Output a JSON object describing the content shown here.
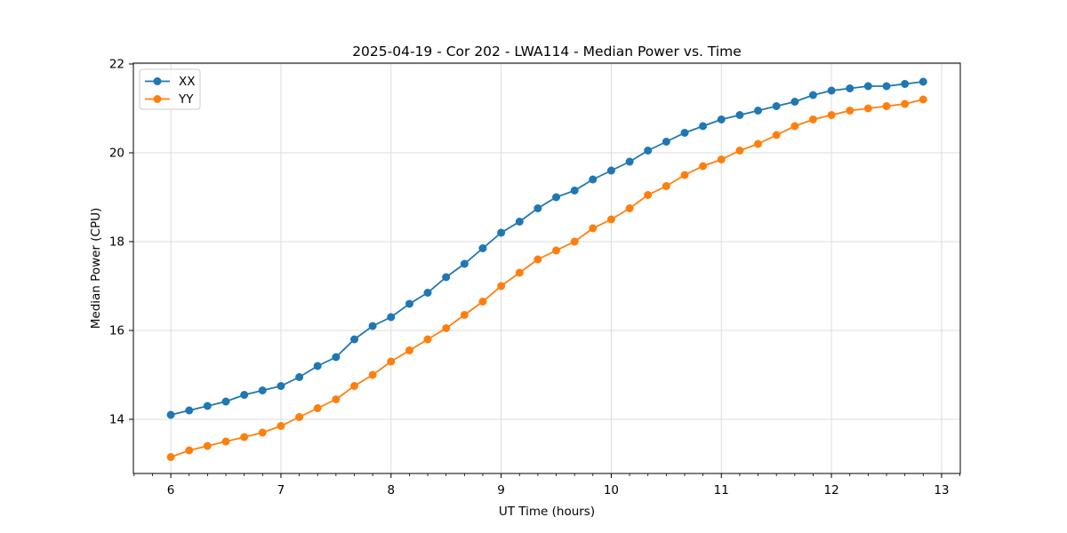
{
  "chart_data": {
    "type": "line",
    "title": "2025-04-19 - Cor 202 - LWA114 - Median Power vs. Time",
    "xlabel": "UT Time (hours)",
    "ylabel": "Median Power (CPU)",
    "xlim": [
      5.66,
      13.17
    ],
    "ylim": [
      12.78,
      22.02
    ],
    "x_major_ticks": [
      6,
      7,
      8,
      9,
      10,
      11,
      12,
      13
    ],
    "x_minor_step": 0.1666667,
    "y_major_ticks": [
      14,
      16,
      18,
      20,
      22
    ],
    "grid": true,
    "legend_position": "upper left",
    "colors": {
      "grid": "#dcdcdc",
      "spine": "#000000",
      "series_xx": "#1f77b4",
      "series_yy": "#ff7f0e"
    },
    "x": [
      6.0,
      6.167,
      6.333,
      6.5,
      6.667,
      6.833,
      7.0,
      7.167,
      7.333,
      7.5,
      7.667,
      7.833,
      8.0,
      8.167,
      8.333,
      8.5,
      8.667,
      8.833,
      9.0,
      9.167,
      9.333,
      9.5,
      9.667,
      9.833,
      10.0,
      10.167,
      10.333,
      10.5,
      10.667,
      10.833,
      11.0,
      11.167,
      11.333,
      11.5,
      11.667,
      11.833,
      12.0,
      12.167,
      12.333,
      12.5,
      12.667,
      12.833
    ],
    "series": [
      {
        "name": "XX",
        "color": "#1f77b4",
        "values": [
          14.1,
          14.2,
          14.3,
          14.4,
          14.55,
          14.65,
          14.75,
          14.95,
          15.2,
          15.4,
          15.8,
          16.1,
          16.3,
          16.6,
          16.85,
          17.2,
          17.5,
          17.85,
          18.2,
          18.45,
          18.75,
          19.0,
          19.15,
          19.4,
          19.6,
          19.8,
          20.05,
          20.25,
          20.45,
          20.6,
          20.75,
          20.85,
          20.95,
          21.05,
          21.15,
          21.3,
          21.4,
          21.45,
          21.5,
          21.5,
          21.55,
          21.6
        ]
      },
      {
        "name": "YY",
        "color": "#ff7f0e",
        "values": [
          13.15,
          13.3,
          13.4,
          13.5,
          13.6,
          13.7,
          13.85,
          14.05,
          14.25,
          14.45,
          14.75,
          15.0,
          15.3,
          15.55,
          15.8,
          16.05,
          16.35,
          16.65,
          17.0,
          17.3,
          17.6,
          17.8,
          18.0,
          18.3,
          18.5,
          18.75,
          19.05,
          19.25,
          19.5,
          19.7,
          19.85,
          20.05,
          20.2,
          20.4,
          20.6,
          20.75,
          20.85,
          20.95,
          21.0,
          21.05,
          21.1,
          21.2
        ]
      }
    ]
  }
}
